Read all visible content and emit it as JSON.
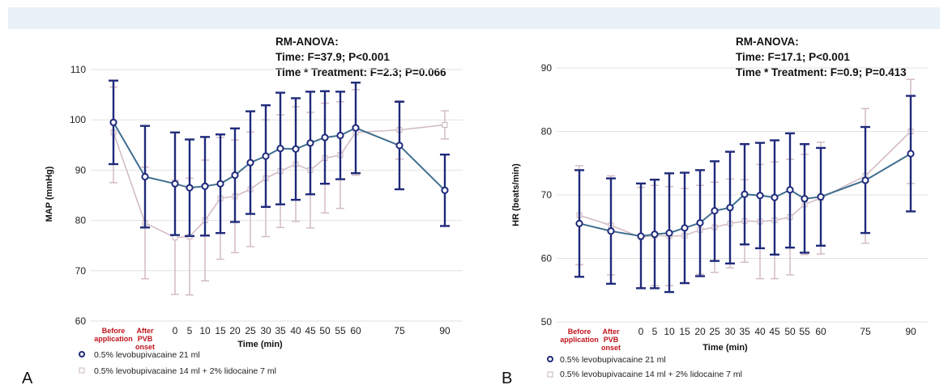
{
  "colors": {
    "series1": "#1f2a7a",
    "series1_line": "#3f6e8f",
    "series2": "#d4bcc4",
    "header": "#e9f2f8"
  },
  "chart_data": [
    {
      "type": "line",
      "panel_label": "A",
      "annotation": [
        "RM-ANOVA:",
        "Time: F=37.9; P<0.001",
        "Time * Treatment: F=2.3; P=0.066"
      ],
      "ylabel": "MAP (mmHg)",
      "xlabel": "Time (min)",
      "ylim": [
        60,
        110
      ],
      "yticks": [
        "60",
        "70",
        "80",
        "90",
        "100",
        "110"
      ],
      "categories": [
        "Before application",
        "After PVB onset",
        "0",
        "5",
        "10",
        "15",
        "20",
        "25",
        "30",
        "35",
        "40",
        "45",
        "50",
        "55",
        "60",
        "75",
        "90"
      ],
      "series": [
        {
          "name": "0.5% levobupivacaine  21 ml",
          "values": [
            99.5,
            88.7,
            87.3,
            86.5,
            86.8,
            87.3,
            89.0,
            91.5,
            92.8,
            94.3,
            94.2,
            95.4,
            96.5,
            96.9,
            98.4,
            94.9,
            86.0
          ],
          "upper": [
            107.8,
            98.8,
            97.5,
            96.1,
            96.6,
            97.1,
            98.3,
            101.7,
            102.9,
            105.4,
            104.3,
            105.6,
            105.7,
            105.6,
            107.4,
            103.6,
            93.1
          ],
          "lower": [
            91.2,
            78.6,
            77.1,
            76.9,
            77.0,
            77.5,
            79.7,
            81.3,
            82.7,
            83.2,
            84.1,
            85.2,
            87.3,
            88.2,
            89.4,
            86.2,
            78.9
          ]
        },
        {
          "name": "0.5% levobupivacaine  14 ml + 2% lidocaine  7 ml",
          "values": [
            97.5,
            79.5,
            76.6,
            76.8,
            80.0,
            84.4,
            84.8,
            86.2,
            88.4,
            89.8,
            91.2,
            90.0,
            92.4,
            93.0,
            97.5,
            98.0,
            99.0
          ],
          "upper": [
            106.5,
            90.6,
            88.0,
            88.4,
            92.0,
            96.5,
            96.0,
            97.6,
            100.0,
            101.0,
            102.6,
            101.5,
            103.3,
            103.6,
            106.0,
            103.8,
            101.8
          ],
          "lower": [
            87.5,
            68.4,
            65.3,
            65.2,
            68.0,
            72.3,
            73.6,
            74.8,
            76.8,
            78.6,
            79.8,
            78.5,
            81.5,
            82.4,
            89.0,
            92.2,
            96.2
          ]
        }
      ]
    },
    {
      "type": "line",
      "panel_label": "B",
      "annotation": [
        "RM-ANOVA:",
        "Time: F=17.1; P<0.001",
        "Time * Treatment: F=0.9; P=0.413"
      ],
      "ylabel": "HR (beats/min)",
      "xlabel": "Time (min)",
      "ylim": [
        50,
        90
      ],
      "yticks": [
        "50",
        "60",
        "70",
        "80",
        "90"
      ],
      "categories": [
        "Before application",
        "After PVB onset",
        "0",
        "5",
        "10",
        "15",
        "20",
        "25",
        "30",
        "35",
        "40",
        "45",
        "50",
        "55",
        "60",
        "75",
        "90"
      ],
      "series": [
        {
          "name": "0.5% levobupivacaine  21 ml",
          "values": [
            65.5,
            64.3,
            63.5,
            63.8,
            64.0,
            64.8,
            65.6,
            67.5,
            68.0,
            70.1,
            69.9,
            69.6,
            70.8,
            69.4,
            69.7,
            72.3,
            76.5
          ],
          "upper": [
            73.9,
            72.6,
            71.8,
            72.4,
            73.4,
            73.5,
            73.9,
            75.3,
            76.8,
            78.0,
            78.2,
            78.6,
            79.7,
            78.0,
            77.4,
            80.7,
            85.6
          ],
          "lower": [
            57.1,
            56.0,
            55.3,
            55.3,
            54.7,
            56.1,
            57.2,
            59.6,
            59.2,
            62.2,
            61.6,
            60.6,
            61.7,
            60.9,
            62.0,
            64.0,
            67.4
          ]
        },
        {
          "name": "0.5% levobupivacaine  14 ml + 2% lidocaine  7 ml",
          "values": [
            66.8,
            65.2,
            63.3,
            63.6,
            63.5,
            63.6,
            64.5,
            64.9,
            65.5,
            65.9,
            65.8,
            66.0,
            66.5,
            68.5,
            69.5,
            73.0,
            80.0
          ],
          "upper": [
            74.6,
            73.0,
            71.2,
            71.5,
            71.3,
            71.0,
            71.5,
            72.0,
            72.5,
            72.4,
            74.8,
            75.2,
            75.6,
            76.4,
            78.3,
            83.6,
            88.2
          ],
          "lower": [
            59.0,
            57.4,
            55.4,
            55.7,
            55.7,
            56.2,
            57.5,
            57.8,
            58.5,
            59.4,
            56.8,
            56.8,
            57.4,
            60.6,
            60.7,
            62.4,
            71.8
          ]
        }
      ]
    }
  ]
}
